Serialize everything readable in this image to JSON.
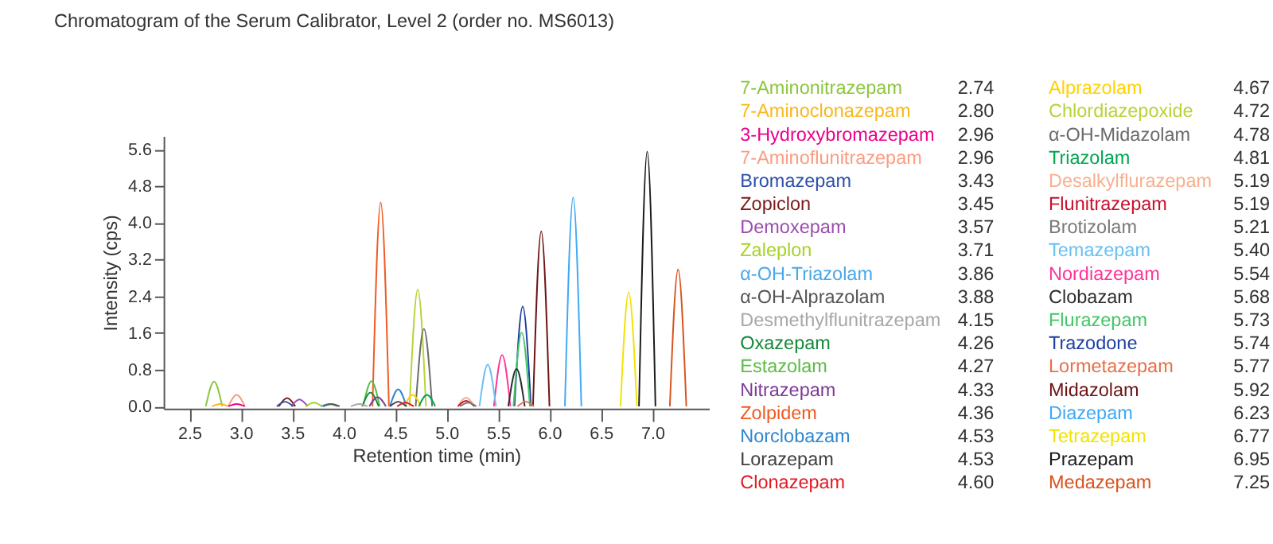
{
  "chart_data": {
    "type": "line",
    "title": "Chromatogram of the Serum Calibrator, Level 2 (order no. MS6013)",
    "xlabel": "Retention time (min)",
    "ylabel": "Intensity (cps)",
    "xlim": [
      2.25,
      7.55
    ],
    "ylim": [
      -0.05,
      5.9
    ],
    "xticks": [
      2.5,
      {
        "value": 3,
        "label": "3.0"
      },
      3.5,
      {
        "value": 4,
        "label": "4.0"
      },
      4.5,
      {
        "value": 5,
        "label": "5.0"
      },
      5.5,
      {
        "value": 6,
        "label": "6.0"
      },
      6.5,
      {
        "value": 7,
        "label": "7.0"
      }
    ],
    "yticks": [
      {
        "value": 0,
        "label": "0.0"
      },
      0.8,
      1.6,
      2.4,
      3.2,
      {
        "value": 4,
        "label": "4.0"
      },
      4.8,
      5.6
    ],
    "legend": "right",
    "annotations": [
      "2.74",
      "2.80",
      "2.96",
      "2.96",
      "3.43",
      "3.45",
      "3.57",
      "3.71",
      "3.86",
      "3.88",
      "4.15",
      "4.26",
      "4.27",
      "4.33",
      "4.36",
      "4.53",
      "4.53",
      "4.60",
      "4.67",
      "4.72",
      "4.78",
      "4.81",
      "5.19",
      "5.19",
      "5.21",
      "5.40",
      "5.54",
      "5.68",
      "5.73",
      "5.74",
      "5.77",
      "5.92",
      "6.23",
      "6.77",
      "6.95",
      "7.25"
    ],
    "series": [
      {
        "name": "7-Aminonitrazepam",
        "color": "#8dc63f",
        "x": [
          2.66,
          2.74,
          2.82
        ],
        "values": [
          0,
          0.54,
          0
        ]
      },
      {
        "name": "7-Aminoclonazepam",
        "color": "#f9b81c",
        "x": [
          2.72,
          2.8,
          2.88
        ],
        "values": [
          0,
          0.05,
          0
        ]
      },
      {
        "name": "3-Hydroxybromazepam",
        "color": "#ec008c",
        "x": [
          2.88,
          2.96,
          3.04
        ],
        "values": [
          0,
          0.05,
          0
        ]
      },
      {
        "name": "7-Aminoflunitrazepam",
        "color": "#fa9d82",
        "x": [
          2.88,
          2.96,
          3.04
        ],
        "values": [
          0,
          0.25,
          0
        ]
      },
      {
        "name": "Bromazepam",
        "color": "#2e50a8",
        "x": [
          3.35,
          3.43,
          3.51
        ],
        "values": [
          0,
          0.1,
          0
        ]
      },
      {
        "name": "Zopiclon",
        "color": "#7b1a1a",
        "x": [
          3.37,
          3.45,
          3.53
        ],
        "values": [
          0,
          0.18,
          0
        ]
      },
      {
        "name": "Demoxepam",
        "color": "#9b4fb0",
        "x": [
          3.49,
          3.57,
          3.65
        ],
        "values": [
          0,
          0.15,
          0
        ]
      },
      {
        "name": "Zaleplon",
        "color": "#a8d22a",
        "x": [
          3.63,
          3.71,
          3.79
        ],
        "values": [
          0,
          0.08,
          0
        ]
      },
      {
        "name": "α-OH-Triazolam",
        "color": "#4aa8e8",
        "x": [
          3.78,
          3.86,
          3.94
        ],
        "values": [
          0,
          0.05,
          0
        ]
      },
      {
        "name": "α-OH-Alprazolam",
        "color": "#555555",
        "x": [
          3.8,
          3.88,
          3.96
        ],
        "values": [
          0,
          0.05,
          0
        ]
      },
      {
        "name": "Desmethylflunitrazepam",
        "color": "#a8a8a8",
        "x": [
          4.07,
          4.15,
          4.23
        ],
        "values": [
          0,
          0.05,
          0
        ]
      },
      {
        "name": "Oxazepam",
        "color": "#16893a",
        "x": [
          4.18,
          4.26,
          4.34
        ],
        "values": [
          0,
          0.3,
          0
        ]
      },
      {
        "name": "Estazolam",
        "color": "#5dbb46",
        "x": [
          4.19,
          4.27,
          4.35
        ],
        "values": [
          0,
          0.55,
          0
        ]
      },
      {
        "name": "Nitrazepam",
        "color": "#7d3c98",
        "x": [
          4.25,
          4.33,
          4.41
        ],
        "values": [
          0,
          0.2,
          0
        ]
      },
      {
        "name": "Zolpidem",
        "color": "#f05a22",
        "x": [
          4.28,
          4.36,
          4.44
        ],
        "values": [
          0,
          4.45,
          0
        ]
      },
      {
        "name": "Norclobazam",
        "color": "#2f86cf",
        "x": [
          4.45,
          4.53,
          4.61
        ],
        "values": [
          0,
          0.37,
          0
        ]
      },
      {
        "name": "Lorazepam",
        "color": "#404040",
        "x": [
          4.45,
          4.53,
          4.61
        ],
        "values": [
          0,
          0.1,
          0
        ]
      },
      {
        "name": "Clonazepam",
        "color": "#e31b23",
        "x": [
          4.52,
          4.6,
          4.68
        ],
        "values": [
          0,
          0.08,
          0
        ]
      },
      {
        "name": "Alprazolam",
        "color": "#ffd200",
        "x": [
          4.59,
          4.67,
          4.75
        ],
        "values": [
          0,
          0.25,
          0
        ]
      },
      {
        "name": "Chlordiazepoxide",
        "color": "#b6d43a",
        "x": [
          4.64,
          4.72,
          4.8
        ],
        "values": [
          0,
          2.55,
          0
        ]
      },
      {
        "name": "α-OH-Midazolam",
        "color": "#6b6b6b",
        "x": [
          4.7,
          4.78,
          4.86
        ],
        "values": [
          0,
          1.69,
          0
        ]
      },
      {
        "name": "Triazolam",
        "color": "#00a651",
        "x": [
          4.73,
          4.81,
          4.89
        ],
        "values": [
          0,
          0.25,
          0
        ]
      },
      {
        "name": "Desalkylflurazepam",
        "color": "#f7b08f",
        "x": [
          5.11,
          5.19,
          5.27
        ],
        "values": [
          0,
          0.19,
          0
        ]
      },
      {
        "name": "Flunitrazepam",
        "color": "#c8102e",
        "x": [
          5.11,
          5.19,
          5.27
        ],
        "values": [
          0,
          0.12,
          0
        ]
      },
      {
        "name": "Brotizolam",
        "color": "#7a7a7a",
        "x": [
          5.13,
          5.21,
          5.29
        ],
        "values": [
          0,
          0.08,
          0
        ]
      },
      {
        "name": "Temazepam",
        "color": "#6cc0f0",
        "x": [
          5.32,
          5.4,
          5.48
        ],
        "values": [
          0,
          0.91,
          0
        ]
      },
      {
        "name": "Nordiazepam",
        "color": "#ff3399",
        "x": [
          5.46,
          5.54,
          5.62
        ],
        "values": [
          0,
          1.12,
          0
        ]
      },
      {
        "name": "Clobazam",
        "color": "#2e2e2e",
        "x": [
          5.6,
          5.68,
          5.76
        ],
        "values": [
          0,
          0.82,
          0
        ]
      },
      {
        "name": "Flurazepam",
        "color": "#44c767",
        "x": [
          5.65,
          5.73,
          5.81
        ],
        "values": [
          0,
          1.61,
          0
        ]
      },
      {
        "name": "Trazodone",
        "color": "#1f3fa0",
        "x": [
          5.66,
          5.74,
          5.82
        ],
        "values": [
          0,
          2.18,
          0
        ]
      },
      {
        "name": "Lormetazepam",
        "color": "#e5704a",
        "x": [
          5.69,
          5.77,
          5.85
        ],
        "values": [
          0,
          0.1,
          0
        ]
      },
      {
        "name": "Midazolam",
        "color": "#6b1414",
        "x": [
          5.84,
          5.92,
          6.0
        ],
        "values": [
          0,
          3.82,
          0
        ]
      },
      {
        "name": "Diazepam",
        "color": "#3fa9f5",
        "x": [
          6.15,
          6.23,
          6.31
        ],
        "values": [
          0,
          4.56,
          0
        ]
      },
      {
        "name": "Tetrazepam",
        "color": "#f2e205",
        "x": [
          6.69,
          6.77,
          6.85
        ],
        "values": [
          0,
          2.49,
          0
        ]
      },
      {
        "name": "Prazepam",
        "color": "#1a1a1a",
        "x": [
          6.87,
          6.95,
          7.03
        ],
        "values": [
          0,
          5.56,
          0
        ]
      },
      {
        "name": "Medazepam",
        "color": "#d9531e",
        "x": [
          7.17,
          7.25,
          7.33
        ],
        "values": [
          0,
          2.99,
          0
        ]
      }
    ]
  }
}
